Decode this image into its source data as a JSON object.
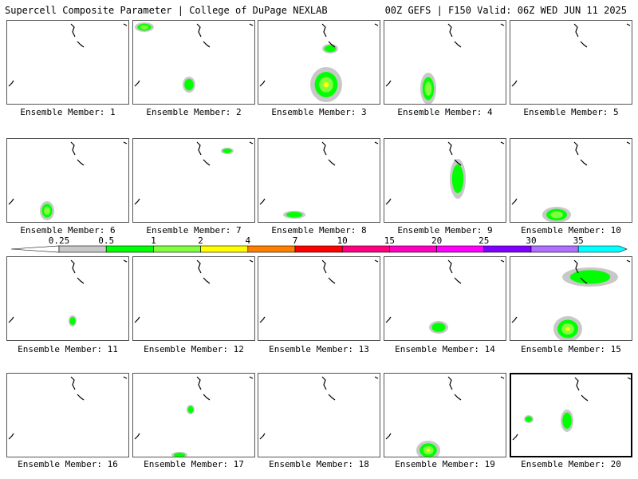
{
  "header": {
    "left": "Supercell Composite Parameter | College of DuPage NEXLAB",
    "right": "00Z GEFS | F150 Valid: 06Z WED JUN 11 2025"
  },
  "member_label_prefix": "Ensemble Member: ",
  "members": [
    {
      "id": "1",
      "selected": false
    },
    {
      "id": "2",
      "selected": false
    },
    {
      "id": "3",
      "selected": false
    },
    {
      "id": "4",
      "selected": false
    },
    {
      "id": "5",
      "selected": false
    },
    {
      "id": "6",
      "selected": false
    },
    {
      "id": "7",
      "selected": false
    },
    {
      "id": "8",
      "selected": false
    },
    {
      "id": "9",
      "selected": false
    },
    {
      "id": "10",
      "selected": false
    },
    {
      "id": "11",
      "selected": false
    },
    {
      "id": "12",
      "selected": false
    },
    {
      "id": "13",
      "selected": false
    },
    {
      "id": "14",
      "selected": false
    },
    {
      "id": "15",
      "selected": false
    },
    {
      "id": "16",
      "selected": false
    },
    {
      "id": "17",
      "selected": false
    },
    {
      "id": "18",
      "selected": false
    },
    {
      "id": "19",
      "selected": false
    },
    {
      "id": "20",
      "selected": true
    }
  ],
  "colorbar": {
    "ticks": [
      "0.25",
      "0.5",
      "1",
      "2",
      "4",
      "7",
      "10",
      "15",
      "20",
      "25",
      "30",
      "35"
    ],
    "colors": [
      "#c8c8c8",
      "#00ff00",
      "#80ff40",
      "#ffff00",
      "#ff8000",
      "#ff0000",
      "#ff0080",
      "#ff00c0",
      "#ff00ff",
      "#8000ff",
      "#b070ff",
      "#00ffff"
    ]
  }
}
